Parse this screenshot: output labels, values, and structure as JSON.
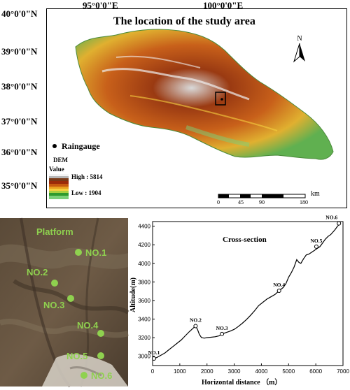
{
  "map": {
    "title": "The location of the study area",
    "lat_labels": [
      "40°0'0\"N",
      "39°0'0\"N",
      "38°0'0\"N",
      "37°0'0\"N",
      "36°0'0\"N",
      "35°0'0\"N"
    ],
    "lon_labels": [
      "95°0'0\"E",
      "100°0'0\"E"
    ],
    "north_label": "N",
    "legend": {
      "raingauge_label": "Raingauge",
      "dem_label": "DEM",
      "value_label": "Value",
      "high_label": "High : 5814",
      "low_label": "Low : 1904",
      "colors": [
        "#f5f5f5",
        "#b8b8b8",
        "#7a3a18",
        "#9b2b0a",
        "#c65a10",
        "#e8a020",
        "#f5d040",
        "#a8d040",
        "#2e9a2e",
        "#7ad07a"
      ]
    },
    "scalebar": {
      "unit": "km",
      "ticks": [
        "0",
        "45",
        "90",
        "180"
      ]
    }
  },
  "photo": {
    "platform_label": "Platform",
    "points": [
      "NO.1",
      "NO.2",
      "NO.3",
      "NO.4",
      "NO.5",
      "NO.6"
    ],
    "point_color": "#8fd14f"
  },
  "chart_data": {
    "type": "line",
    "title": "Cross-section",
    "xlabel": "Horizontal distance （m）",
    "ylabel": "Altitude(m)",
    "xlim": [
      0,
      7000
    ],
    "ylim": [
      2900,
      4450
    ],
    "xticks": [
      0,
      1000,
      2000,
      3000,
      4000,
      5000,
      6000,
      7000
    ],
    "yticks": [
      3000,
      3200,
      3400,
      3600,
      3800,
      4000,
      4200,
      4400
    ],
    "profile": {
      "x": [
        0,
        150,
        300,
        450,
        600,
        750,
        900,
        1050,
        1200,
        1350,
        1500,
        1580,
        1650,
        1720,
        1800,
        1900,
        2000,
        2150,
        2300,
        2450,
        2550,
        2700,
        2850,
        3000,
        3150,
        3300,
        3450,
        3600,
        3750,
        3900,
        4050,
        4200,
        4350,
        4500,
        4650,
        4800,
        4900,
        5000,
        5100,
        5200,
        5300,
        5380,
        5450,
        5550,
        5650,
        5750,
        5850,
        5950,
        6050,
        6150,
        6250,
        6350,
        6450,
        6550,
        6700,
        6800,
        6900
      ],
      "y": [
        2975,
        2985,
        3010,
        3035,
        3070,
        3105,
        3140,
        3175,
        3220,
        3265,
        3305,
        3325,
        3290,
        3235,
        3200,
        3195,
        3200,
        3205,
        3210,
        3220,
        3240,
        3255,
        3270,
        3290,
        3320,
        3355,
        3395,
        3440,
        3490,
        3545,
        3580,
        3615,
        3640,
        3665,
        3705,
        3740,
        3780,
        3850,
        3900,
        3960,
        4040,
        4010,
        4000,
        4050,
        4090,
        4100,
        4120,
        4140,
        4160,
        4180,
        4220,
        4260,
        4290,
        4310,
        4360,
        4400,
        4430
      ]
    },
    "points": [
      {
        "name": "NO.1",
        "x": 50,
        "y": 2975
      },
      {
        "name": "NO.2",
        "x": 1580,
        "y": 3325
      },
      {
        "name": "NO.3",
        "x": 2550,
        "y": 3240
      },
      {
        "name": "NO.4",
        "x": 4650,
        "y": 3705
      },
      {
        "name": "NO.5",
        "x": 6020,
        "y": 4180
      },
      {
        "name": "NO.6",
        "x": 6850,
        "y": 4430
      }
    ]
  }
}
